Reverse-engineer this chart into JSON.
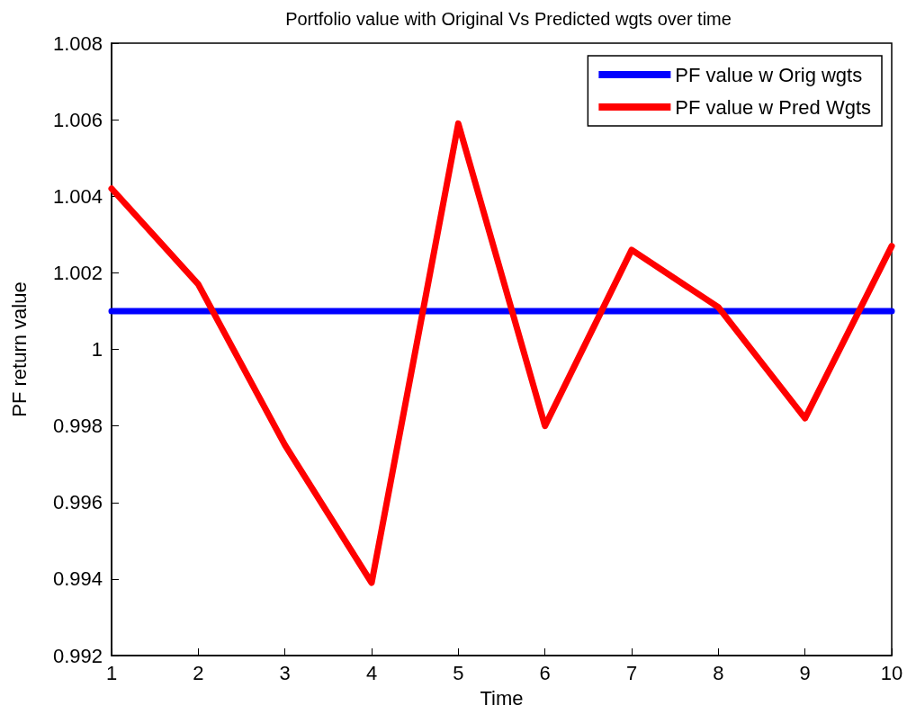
{
  "chart_data": {
    "type": "line",
    "title": "Portfolio value with Original Vs Predicted wgts over time",
    "xlabel": "Time",
    "ylabel": "PF return value",
    "x": [
      1,
      2,
      3,
      4,
      5,
      6,
      7,
      8,
      9,
      10
    ],
    "series": [
      {
        "name": "PF value w Orig wgts",
        "color": "#0000ff",
        "values": [
          1.001,
          1.001,
          1.001,
          1.001,
          1.001,
          1.001,
          1.001,
          1.001,
          1.001,
          1.001
        ]
      },
      {
        "name": "PF value w Pred Wgts",
        "color": "#ff0000",
        "values": [
          1.0042,
          1.0017,
          0.9975,
          0.9939,
          1.0059,
          0.998,
          1.0026,
          1.0011,
          0.9982,
          1.0027
        ]
      }
    ],
    "xlim": [
      1,
      10
    ],
    "xticks": [
      1,
      2,
      3,
      4,
      5,
      6,
      7,
      8,
      9,
      10
    ],
    "ylim": [
      0.992,
      1.008
    ],
    "yticks": [
      0.992,
      0.994,
      0.996,
      0.998,
      1,
      1.002,
      1.004,
      1.006,
      1.008
    ],
    "grid": false,
    "legend": "top right",
    "marker": "none",
    "line_style": "solid"
  }
}
